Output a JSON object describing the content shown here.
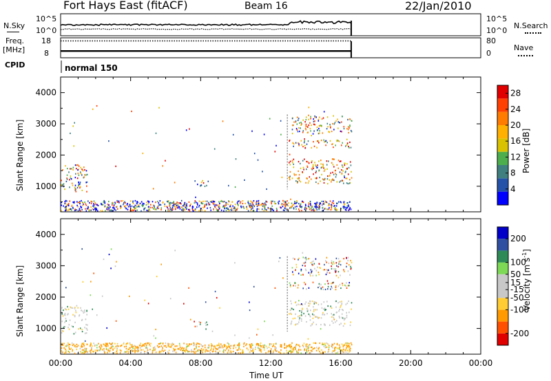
{
  "header": {
    "station": "Fort Hays East (fitACF)",
    "beam": "Beam 16",
    "date": "22/Jan/2010"
  },
  "colors": {
    "power_scale": [
      "#0000ff",
      "#2352a8",
      "#3f7f7f",
      "#4cae4c",
      "#d9c200",
      "#ffb000",
      "#ff7c00",
      "#ff4000",
      "#e00000"
    ],
    "velocity_scale": [
      "#e00000",
      "#ff5000",
      "#ff9a00",
      "#ffcc33",
      "#c8c8c8",
      "#c8c8c8",
      "#7ed957",
      "#2e8b57",
      "#2f4fa0",
      "#0000c8"
    ]
  },
  "chart_data": [
    {
      "type": "line",
      "panel": "noise",
      "left_label": "N.Sky",
      "right_label": "N.Search",
      "left_ticks": [
        "10^5",
        "10^0"
      ],
      "right_ticks": [
        "10^5",
        "10^0"
      ],
      "x_range_hours": [
        0,
        24
      ],
      "data_span_hours": [
        0,
        16.6
      ]
    },
    {
      "type": "line",
      "panel": "frequency",
      "left_label_lines": [
        "Freq.",
        "[MHz]"
      ],
      "right_label": "Nave",
      "left_ticks": [
        "18",
        "8"
      ],
      "right_ticks": [
        "80",
        "0"
      ],
      "freq_mhz": 11.5,
      "nave_approx": 70,
      "data_span_hours": [
        0,
        16.6
      ]
    },
    {
      "type": "text",
      "panel": "cpid",
      "label": "CPID",
      "program": "normal 150"
    },
    {
      "type": "heatmap",
      "panel": "power",
      "ylabel": "Slant Range [km]",
      "yticks": [
        1000,
        2000,
        3000,
        4000
      ],
      "ylim": [
        180,
        4500
      ],
      "xlim": [
        0,
        24
      ],
      "colorbar_label": "Power [dB]",
      "colorbar_ticks": [
        4,
        8,
        12,
        16,
        20,
        24,
        28
      ],
      "colorbar_range": [
        0,
        30
      ],
      "scatter_regions": [
        {
          "t": [
            0,
            1.5
          ],
          "r": [
            850,
            1750
          ]
        },
        {
          "t": [
            0,
            16.6
          ],
          "r": [
            230,
            560
          ]
        },
        {
          "t": [
            7.6,
            8.4
          ],
          "r": [
            1000,
            1250
          ]
        },
        {
          "t": [
            13,
            16.6
          ],
          "r": [
            1100,
            1900
          ]
        },
        {
          "t": [
            13,
            16.6
          ],
          "r": [
            2250,
            2500
          ]
        },
        {
          "t": [
            13.2,
            16.6
          ],
          "r": [
            2700,
            3300
          ]
        }
      ]
    },
    {
      "type": "heatmap",
      "panel": "velocity",
      "ylabel": "Slant Range [km]",
      "yticks": [
        1000,
        2000,
        3000,
        4000
      ],
      "ylim": [
        180,
        4500
      ],
      "xlim": [
        0,
        24
      ],
      "xticks": [
        "00:00",
        "04:00",
        "08:00",
        "12:00",
        "16:00",
        "20:00",
        "00:00"
      ],
      "xlabel": "Time UT",
      "colorbar_label": "Velocity [m s-1]",
      "colorbar_ticks": [
        200,
        100,
        50,
        15,
        -15,
        -50,
        -100,
        -200
      ],
      "colorbar_range": [
        -250,
        250
      ]
    }
  ]
}
